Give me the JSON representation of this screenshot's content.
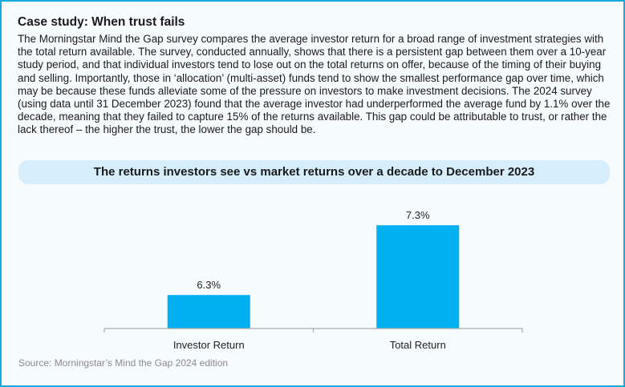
{
  "heading": "Case study: When trust fails",
  "body": "The Morningstar Mind the Gap survey compares the average investor return for a broad range of investment strategies with the total return available. The survey, conducted annually, shows that there is a persistent gap between them over a 10-year study period, and that individual investors tend to lose out on the total returns on offer, because of the timing of their buying and selling. Importantly, those in ‘allocation’ (multi-asset) funds tend to show the smallest performance gap over time, which may be because these funds alleviate some of the pressure on investors to make investment decisions. The 2024 survey (using data until 31 December 2023) found that the average investor had underperformed the average fund by 1.1% over the decade, meaning that they failed to capture 15% of the returns available. This gap could be attributable to trust, or rather the lack thereof – the higher the trust, the lower the gap should be.",
  "source": "Source: Morningstar’s Mind the Gap 2024 edition",
  "chart_data": {
    "type": "bar",
    "title": "The returns investors see vs market returns over a decade to December 2023",
    "categories": [
      "Investor Return",
      "Total Return"
    ],
    "values": [
      6.3,
      7.3
    ],
    "data_labels": [
      "6.3%",
      "7.3%"
    ],
    "ylim": [
      5.82,
      7.6
    ],
    "grid": false,
    "bar_color": "#00b0f0",
    "xlabel": "",
    "ylabel": ""
  }
}
